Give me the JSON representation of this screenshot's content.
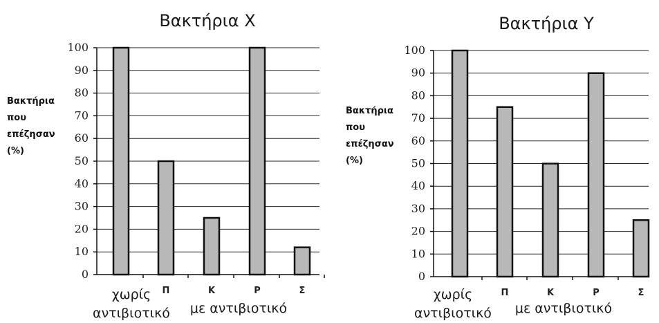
{
  "chart_data": [
    {
      "type": "bar",
      "title": "Βακτήρια Χ",
      "ylabel": "Βακτήρια που επέζησαν (%)",
      "ylabel_lines": [
        "Βακτήρια",
        "που",
        "επέζησαν",
        "(%)"
      ],
      "xlabel": "με αντιβιοτικό",
      "categories": [
        "χωρίς αντιβιοτικό",
        "Π",
        "Κ",
        "Ρ",
        "Σ"
      ],
      "category_lines": [
        [
          "χωρίς",
          "αντιβιοτικό"
        ],
        [
          "Π"
        ],
        [
          "Κ"
        ],
        [
          "Ρ"
        ],
        [
          "Σ"
        ]
      ],
      "values": [
        100,
        50,
        25,
        100,
        12
      ],
      "ylim": [
        0,
        100
      ],
      "yticks": [
        0,
        10,
        20,
        30,
        40,
        50,
        60,
        70,
        80,
        90,
        100
      ],
      "grid": true,
      "bar_color": "#b8b8b8"
    },
    {
      "type": "bar",
      "title": "Βακτήρια Υ",
      "ylabel": "Βακτήρια που επέζησαν (%)",
      "ylabel_lines": [
        "Βακτήρια",
        "που",
        "επέζησαν",
        "(%)"
      ],
      "xlabel": "με αντιβιοτικό",
      "categories": [
        "χωρίς αντιβιοτικό",
        "Π",
        "Κ",
        "Ρ",
        "Σ"
      ],
      "category_lines": [
        [
          "χωρίς",
          "αντιβιοτικό"
        ],
        [
          "Π"
        ],
        [
          "Κ"
        ],
        [
          "Ρ"
        ],
        [
          "Σ"
        ]
      ],
      "values": [
        100,
        75,
        50,
        90,
        25
      ],
      "ylim": [
        0,
        100
      ],
      "yticks": [
        0,
        10,
        20,
        30,
        40,
        50,
        60,
        70,
        80,
        90,
        100
      ],
      "grid": true,
      "bar_color": "#b8b8b8"
    }
  ]
}
